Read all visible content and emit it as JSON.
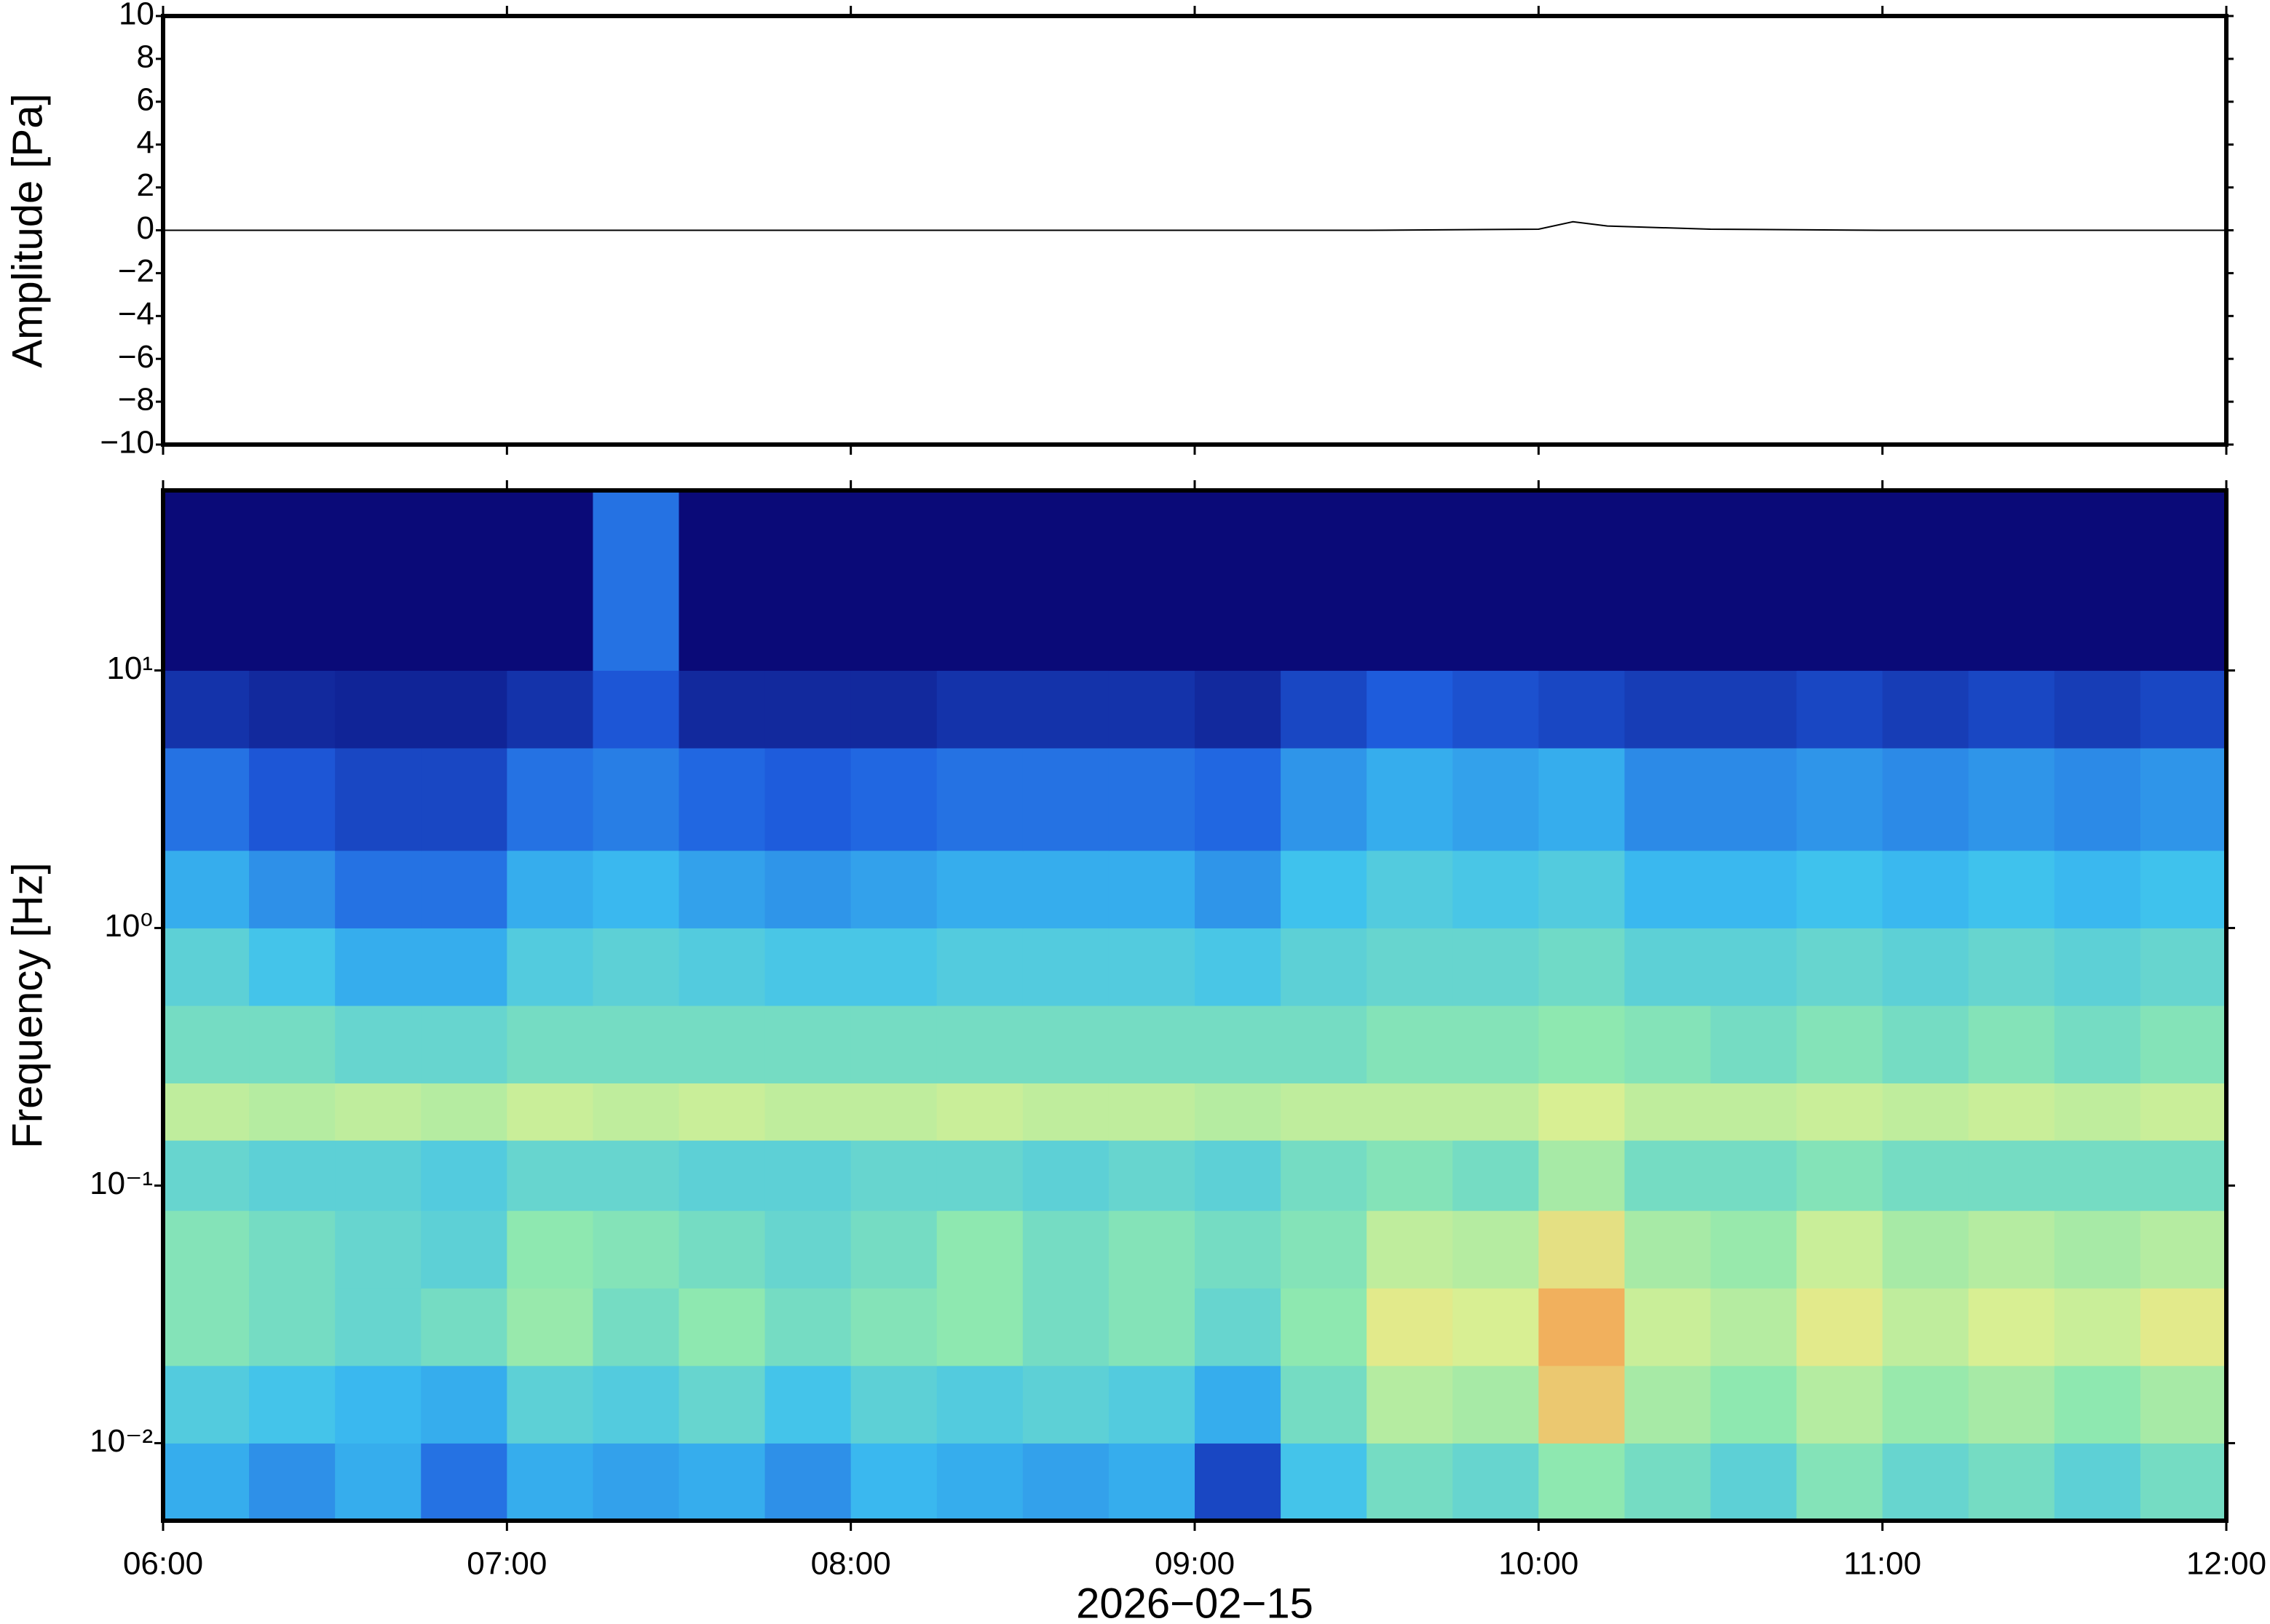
{
  "chart_data": [
    {
      "type": "line",
      "ylabel": "Amplitude [Pa]",
      "color": "#000000",
      "xlim": [
        6,
        12
      ],
      "ylim": [
        -10,
        10
      ],
      "yticks": [
        {
          "value": -10,
          "label": "−10"
        },
        {
          "value": -8,
          "label": "−8"
        },
        {
          "value": -6,
          "label": "−6"
        },
        {
          "value": -4,
          "label": "−4"
        },
        {
          "value": -2,
          "label": "−2"
        },
        0,
        2,
        4,
        6,
        8,
        10
      ],
      "x": [
        6,
        6.5,
        7,
        7.5,
        8,
        8.5,
        9,
        9.5,
        10,
        10.1,
        10.2,
        10.5,
        11,
        11.5,
        12
      ],
      "values": [
        0,
        0,
        0,
        0,
        0,
        0,
        0,
        0,
        0.05,
        0.4,
        0.2,
        0.05,
        0,
        0,
        0
      ]
    },
    {
      "type": "heatmap",
      "ylabel": "Frequency [Hz]",
      "xlabel": "2026−02−15",
      "log_y": true,
      "xlim": [
        6,
        12
      ],
      "xticks": [
        {
          "value": 6,
          "label": "06:00"
        },
        {
          "value": 7,
          "label": "07:00"
        },
        {
          "value": 8,
          "label": "08:00"
        },
        {
          "value": 9,
          "label": "09:00"
        },
        {
          "value": 10,
          "label": "10:00"
        },
        {
          "value": 11,
          "label": "11:00"
        },
        {
          "value": 12,
          "label": "12:00"
        }
      ],
      "ylim": [
        0.005,
        50
      ],
      "yticks": [
        {
          "value": 0.01,
          "label": "10⁻²"
        },
        {
          "value": 0.1,
          "label": "10⁻¹"
        },
        {
          "value": 1,
          "label": "10⁰"
        },
        {
          "value": 10,
          "label": "10¹"
        }
      ],
      "x_bins": [
        6,
        6.25,
        6.5,
        6.75,
        7,
        7.25,
        7.5,
        7.75,
        8,
        8.25,
        8.5,
        8.75,
        9,
        9.25,
        9.5,
        9.75,
        10,
        10.25,
        10.5,
        10.75,
        11,
        11.25,
        11.5,
        11.75,
        12
      ],
      "y_bins": [
        0.005,
        0.01,
        0.02,
        0.04,
        0.08,
        0.15,
        0.25,
        0.5,
        1,
        2,
        5,
        10,
        50
      ],
      "zlim": [
        0,
        1
      ],
      "colorscale": [
        "#0a0a78",
        "#1f5fe0",
        "#3cc0f0",
        "#8ee8b0",
        "#e0f090",
        "#f5a050",
        "#e03020"
      ],
      "values": [
        [
          0.3,
          0.25,
          0.3,
          0.2,
          0.3,
          0.28,
          0.3,
          0.25,
          0.32,
          0.3,
          0.28,
          0.3,
          0.12,
          0.35,
          0.45,
          0.42,
          0.5,
          0.45,
          0.4,
          0.48,
          0.42,
          0.45,
          0.4,
          0.45
        ],
        [
          0.38,
          0.35,
          0.32,
          0.3,
          0.4,
          0.38,
          0.42,
          0.35,
          0.4,
          0.38,
          0.4,
          0.38,
          0.3,
          0.45,
          0.58,
          0.55,
          0.75,
          0.55,
          0.5,
          0.58,
          0.52,
          0.55,
          0.5,
          0.55
        ],
        [
          0.48,
          0.45,
          0.42,
          0.45,
          0.52,
          0.45,
          0.5,
          0.45,
          0.48,
          0.5,
          0.45,
          0.48,
          0.42,
          0.5,
          0.68,
          0.65,
          0.8,
          0.62,
          0.58,
          0.68,
          0.6,
          0.65,
          0.62,
          0.68
        ],
        [
          0.48,
          0.45,
          0.42,
          0.4,
          0.5,
          0.48,
          0.45,
          0.42,
          0.45,
          0.5,
          0.45,
          0.48,
          0.45,
          0.48,
          0.6,
          0.58,
          0.7,
          0.55,
          0.52,
          0.62,
          0.55,
          0.58,
          0.55,
          0.58
        ],
        [
          0.42,
          0.4,
          0.4,
          0.38,
          0.42,
          0.42,
          0.4,
          0.4,
          0.42,
          0.42,
          0.4,
          0.42,
          0.4,
          0.45,
          0.48,
          0.45,
          0.55,
          0.45,
          0.45,
          0.48,
          0.45,
          0.45,
          0.45,
          0.45
        ],
        [
          0.6,
          0.58,
          0.6,
          0.58,
          0.62,
          0.6,
          0.62,
          0.6,
          0.6,
          0.62,
          0.6,
          0.6,
          0.58,
          0.6,
          0.6,
          0.6,
          0.65,
          0.6,
          0.6,
          0.62,
          0.6,
          0.62,
          0.6,
          0.62
        ],
        [
          0.45,
          0.45,
          0.42,
          0.42,
          0.45,
          0.45,
          0.45,
          0.45,
          0.45,
          0.45,
          0.45,
          0.45,
          0.45,
          0.45,
          0.48,
          0.48,
          0.5,
          0.48,
          0.45,
          0.48,
          0.45,
          0.48,
          0.45,
          0.48
        ],
        [
          0.4,
          0.35,
          0.3,
          0.3,
          0.38,
          0.4,
          0.38,
          0.36,
          0.36,
          0.38,
          0.38,
          0.38,
          0.36,
          0.4,
          0.42,
          0.42,
          0.44,
          0.4,
          0.4,
          0.42,
          0.4,
          0.42,
          0.4,
          0.42
        ],
        [
          0.3,
          0.25,
          0.2,
          0.2,
          0.3,
          0.32,
          0.28,
          0.26,
          0.28,
          0.3,
          0.3,
          0.3,
          0.26,
          0.34,
          0.38,
          0.36,
          0.38,
          0.32,
          0.32,
          0.34,
          0.32,
          0.34,
          0.32,
          0.34
        ],
        [
          0.2,
          0.15,
          0.12,
          0.12,
          0.2,
          0.22,
          0.18,
          0.16,
          0.18,
          0.2,
          0.2,
          0.2,
          0.18,
          0.26,
          0.3,
          0.28,
          0.3,
          0.24,
          0.24,
          0.26,
          0.24,
          0.26,
          0.24,
          0.26
        ],
        [
          0.08,
          0.06,
          0.05,
          0.05,
          0.08,
          0.15,
          0.06,
          0.06,
          0.06,
          0.08,
          0.08,
          0.08,
          0.06,
          0.12,
          0.16,
          0.14,
          0.12,
          0.1,
          0.1,
          0.12,
          0.1,
          0.12,
          0.1,
          0.12
        ],
        [
          0,
          0,
          0,
          0,
          0,
          0.2,
          0,
          0,
          0,
          0,
          0,
          0,
          0,
          0,
          0,
          0,
          0,
          0,
          0,
          0,
          0,
          0,
          0,
          0
        ]
      ]
    }
  ]
}
